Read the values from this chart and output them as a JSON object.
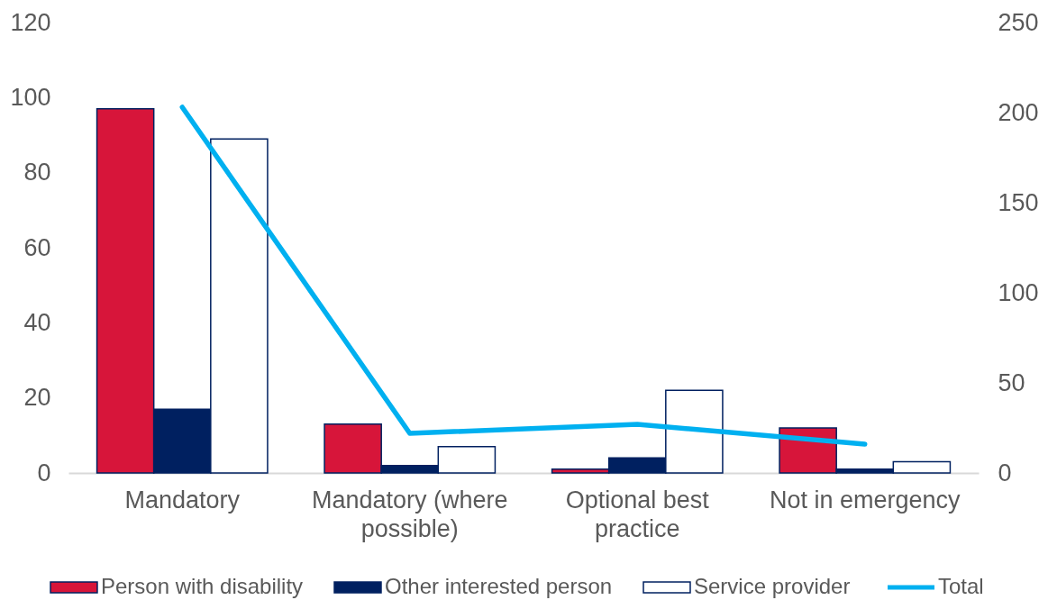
{
  "chart_data": {
    "type": "bar",
    "categories": [
      "Mandatory",
      "Mandatory (where possible)",
      "Optional best practice",
      "Not in emergency"
    ],
    "series": [
      {
        "name": "Person with disability",
        "color": "#d7153a",
        "values": [
          97,
          13,
          1,
          12
        ]
      },
      {
        "name": "Other interested person",
        "color": "#002060",
        "values": [
          17,
          2,
          4,
          1
        ]
      },
      {
        "name": "Service provider",
        "color": "#ffffff",
        "values": [
          89,
          7,
          22,
          3
        ]
      },
      {
        "name": "Total",
        "type": "line",
        "axis": "y2",
        "color": "#00b0f0",
        "values": [
          203,
          22,
          27,
          16
        ]
      }
    ],
    "ylim": [
      0,
      120
    ],
    "yticks": [
      0,
      20,
      40,
      60,
      80,
      100,
      120
    ],
    "y2lim": [
      0,
      250
    ],
    "y2ticks": [
      0,
      50,
      100,
      150,
      200,
      250
    ],
    "legend": "bottom"
  }
}
